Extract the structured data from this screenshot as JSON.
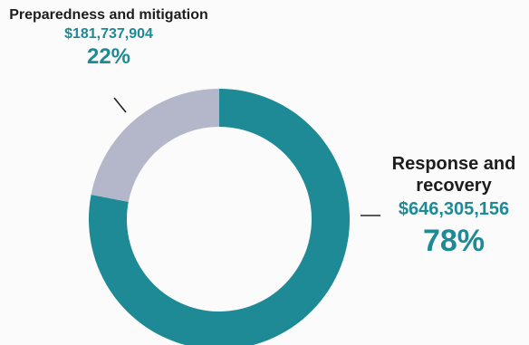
{
  "chart_data": {
    "type": "pie",
    "donut": true,
    "slices": [
      {
        "label": "Response and recovery",
        "amount": "$646,305,156",
        "percent": "78%",
        "value": 78,
        "color": "#1d8a96"
      },
      {
        "label": "Preparedness and mitigation",
        "amount": "$181,737,904",
        "percent": "22%",
        "value": 22,
        "color": "#b3b7c9"
      }
    ],
    "label_color": "#1d1d1d",
    "accent_color": "#1d8a96"
  }
}
